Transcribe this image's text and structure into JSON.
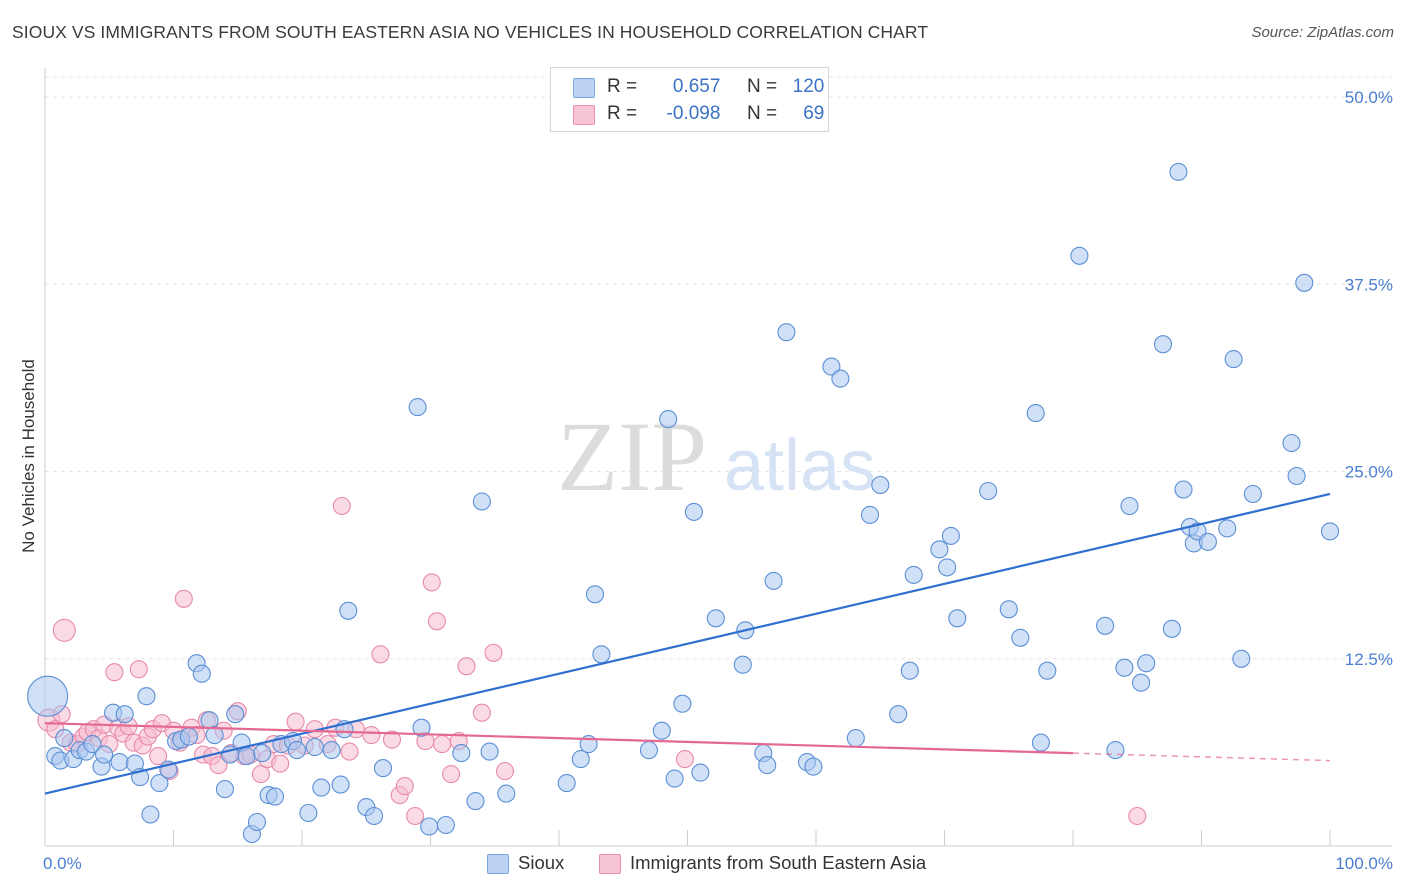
{
  "title": "SIOUX VS IMMIGRANTS FROM SOUTH EASTERN ASIA NO VEHICLES IN HOUSEHOLD CORRELATION CHART",
  "source": "Source: ZipAtlas.com",
  "watermark": {
    "zip": "ZIP",
    "atlas": "atlas"
  },
  "legend": {
    "r_label": "R =",
    "n_label": "N =",
    "rows": [
      {
        "name": "Sioux",
        "r": "0.657",
        "n": "120",
        "color": "#7ba7e6",
        "fill": "#bcd2f3"
      },
      {
        "name": "Immigrants from South Eastern Asia",
        "r": "-0.098",
        "n": "69",
        "color": "#ec8fae",
        "fill": "#f7c6d6"
      }
    ]
  },
  "chart_data": {
    "type": "scatter",
    "title": "SIOUX VS IMMIGRANTS FROM SOUTH EASTERN ASIA NO VEHICLES IN HOUSEHOLD CORRELATION CHART",
    "xlabel": "",
    "ylabel": "No Vehicles in Household",
    "xlim": [
      0,
      100
    ],
    "ylim": [
      0,
      50
    ],
    "x_tick_labels": [
      "0.0%",
      "100.0%"
    ],
    "y_ticks": [
      12.5,
      25.0,
      37.5,
      50.0
    ],
    "y_tick_labels": [
      "12.5%",
      "25.0%",
      "37.5%",
      "50.0%"
    ],
    "grid": true,
    "legend_position": "top-center",
    "series": [
      {
        "name": "Sioux",
        "color": "#5b8fd6",
        "fill": "#aac6ee",
        "trend_color": "#2f6fd0",
        "trend": {
          "x": [
            0,
            100
          ],
          "y": [
            3.5,
            23.5
          ]
        },
        "points": [
          [
            0.2,
            10.0
          ],
          [
            0.8,
            6.0
          ],
          [
            1.2,
            5.7
          ],
          [
            1.5,
            7.2
          ],
          [
            2.2,
            5.8
          ],
          [
            2.7,
            6.4
          ],
          [
            3.2,
            6.3
          ],
          [
            3.7,
            6.8
          ],
          [
            4.4,
            5.3
          ],
          [
            4.6,
            6.1
          ],
          [
            5.3,
            8.9
          ],
          [
            5.8,
            5.6
          ],
          [
            6.2,
            8.8
          ],
          [
            7.0,
            5.5
          ],
          [
            7.4,
            4.6
          ],
          [
            7.9,
            10.0
          ],
          [
            8.2,
            2.1
          ],
          [
            8.9,
            4.2
          ],
          [
            9.6,
            5.1
          ],
          [
            10.2,
            7.0
          ],
          [
            10.6,
            7.1
          ],
          [
            11.2,
            7.3
          ],
          [
            11.8,
            12.2
          ],
          [
            12.2,
            11.5
          ],
          [
            12.8,
            8.4
          ],
          [
            13.2,
            7.4
          ],
          [
            14.0,
            3.8
          ],
          [
            14.4,
            6.1
          ],
          [
            14.8,
            8.8
          ],
          [
            15.3,
            6.9
          ],
          [
            15.7,
            6.0
          ],
          [
            16.1,
            0.8
          ],
          [
            16.5,
            1.6
          ],
          [
            16.9,
            6.2
          ],
          [
            17.4,
            3.4
          ],
          [
            17.9,
            3.3
          ],
          [
            18.4,
            6.8
          ],
          [
            19.3,
            7.0
          ],
          [
            19.6,
            6.4
          ],
          [
            20.5,
            2.2
          ],
          [
            21.0,
            6.6
          ],
          [
            21.5,
            3.9
          ],
          [
            22.3,
            6.4
          ],
          [
            23.0,
            4.1
          ],
          [
            23.3,
            7.8
          ],
          [
            23.6,
            15.7
          ],
          [
            25.0,
            2.6
          ],
          [
            25.6,
            2.0
          ],
          [
            26.3,
            5.2
          ],
          [
            29.0,
            29.3
          ],
          [
            29.3,
            7.9
          ],
          [
            29.9,
            1.3
          ],
          [
            31.2,
            1.4
          ],
          [
            32.4,
            6.2
          ],
          [
            33.5,
            3.0
          ],
          [
            34.0,
            23.0
          ],
          [
            34.6,
            6.3
          ],
          [
            35.9,
            3.5
          ],
          [
            40.6,
            4.2
          ],
          [
            41.7,
            5.8
          ],
          [
            42.3,
            6.8
          ],
          [
            42.8,
            16.8
          ],
          [
            43.3,
            12.8
          ],
          [
            47.0,
            6.4
          ],
          [
            48.0,
            7.7
          ],
          [
            48.5,
            28.5
          ],
          [
            49.0,
            4.5
          ],
          [
            49.6,
            9.5
          ],
          [
            50.5,
            22.3
          ],
          [
            51.0,
            4.9
          ],
          [
            52.2,
            15.2
          ],
          [
            54.3,
            12.1
          ],
          [
            54.5,
            14.4
          ],
          [
            55.9,
            6.2
          ],
          [
            56.2,
            5.4
          ],
          [
            56.7,
            17.7
          ],
          [
            57.7,
            34.3
          ],
          [
            59.3,
            5.6
          ],
          [
            59.8,
            5.3
          ],
          [
            61.2,
            32.0
          ],
          [
            61.9,
            31.2
          ],
          [
            63.1,
            7.2
          ],
          [
            64.2,
            22.1
          ],
          [
            65.0,
            24.1
          ],
          [
            66.4,
            8.8
          ],
          [
            67.3,
            11.7
          ],
          [
            67.6,
            18.1
          ],
          [
            69.6,
            19.8
          ],
          [
            70.2,
            18.6
          ],
          [
            70.5,
            20.7
          ],
          [
            71.0,
            15.2
          ],
          [
            73.4,
            23.7
          ],
          [
            75.0,
            15.8
          ],
          [
            75.9,
            13.9
          ],
          [
            77.1,
            28.9
          ],
          [
            77.5,
            6.9
          ],
          [
            78.0,
            11.7
          ],
          [
            80.5,
            39.4
          ],
          [
            82.5,
            14.7
          ],
          [
            83.3,
            6.4
          ],
          [
            84.0,
            11.9
          ],
          [
            84.4,
            22.7
          ],
          [
            85.3,
            10.9
          ],
          [
            85.7,
            12.2
          ],
          [
            87.0,
            33.5
          ],
          [
            87.7,
            14.5
          ],
          [
            88.2,
            45.0
          ],
          [
            88.6,
            23.8
          ],
          [
            89.1,
            21.3
          ],
          [
            89.4,
            20.2
          ],
          [
            89.7,
            21.0
          ],
          [
            90.5,
            20.3
          ],
          [
            92.0,
            21.2
          ],
          [
            92.5,
            32.5
          ],
          [
            93.1,
            12.5
          ],
          [
            94.0,
            23.5
          ],
          [
            97.0,
            26.9
          ],
          [
            97.4,
            24.7
          ],
          [
            98.0,
            37.6
          ],
          [
            100.0,
            21.0
          ]
        ]
      },
      {
        "name": "Immigrants from South Eastern Asia",
        "color": "#e88aab",
        "fill": "#f5bcd0",
        "trend_color": "#e46892",
        "trend": {
          "x": [
            0,
            80
          ],
          "y": [
            8.2,
            6.2
          ]
        },
        "trend_dashed": {
          "x": [
            80,
            100
          ],
          "y": [
            6.2,
            5.7
          ]
        },
        "points": [
          [
            0.3,
            8.4
          ],
          [
            0.8,
            7.8
          ],
          [
            1.3,
            8.8
          ],
          [
            1.5,
            14.4
          ],
          [
            2.0,
            6.9
          ],
          [
            2.5,
            6.8
          ],
          [
            3.0,
            7.3
          ],
          [
            3.3,
            7.6
          ],
          [
            3.8,
            7.8
          ],
          [
            4.2,
            7.2
          ],
          [
            4.6,
            8.1
          ],
          [
            5.0,
            6.8
          ],
          [
            5.4,
            11.6
          ],
          [
            5.7,
            7.9
          ],
          [
            6.1,
            7.5
          ],
          [
            6.5,
            8.0
          ],
          [
            6.9,
            6.9
          ],
          [
            7.3,
            11.8
          ],
          [
            7.6,
            6.7
          ],
          [
            8.0,
            7.3
          ],
          [
            8.4,
            7.8
          ],
          [
            8.8,
            6.0
          ],
          [
            9.1,
            8.2
          ],
          [
            9.7,
            5.0
          ],
          [
            10.0,
            7.7
          ],
          [
            10.5,
            6.9
          ],
          [
            10.8,
            16.5
          ],
          [
            11.4,
            7.9
          ],
          [
            11.8,
            7.4
          ],
          [
            12.3,
            6.1
          ],
          [
            12.6,
            8.4
          ],
          [
            13.0,
            6.0
          ],
          [
            13.5,
            5.4
          ],
          [
            13.9,
            7.7
          ],
          [
            14.5,
            6.2
          ],
          [
            15.0,
            9.0
          ],
          [
            15.5,
            6.0
          ],
          [
            16.0,
            6.1
          ],
          [
            16.8,
            4.8
          ],
          [
            17.3,
            5.8
          ],
          [
            17.8,
            6.8
          ],
          [
            18.3,
            5.5
          ],
          [
            18.9,
            6.7
          ],
          [
            19.5,
            8.3
          ],
          [
            20.2,
            6.7
          ],
          [
            21.0,
            7.8
          ],
          [
            22.0,
            6.8
          ],
          [
            22.6,
            7.9
          ],
          [
            23.1,
            22.7
          ],
          [
            23.7,
            6.3
          ],
          [
            24.2,
            7.8
          ],
          [
            25.4,
            7.4
          ],
          [
            26.1,
            12.8
          ],
          [
            27.0,
            7.1
          ],
          [
            27.6,
            3.4
          ],
          [
            28.0,
            4.0
          ],
          [
            28.8,
            2.0
          ],
          [
            29.6,
            7.0
          ],
          [
            30.1,
            17.6
          ],
          [
            30.5,
            15.0
          ],
          [
            30.9,
            6.8
          ],
          [
            31.6,
            4.8
          ],
          [
            32.2,
            7.0
          ],
          [
            32.8,
            12.0
          ],
          [
            34.0,
            8.9
          ],
          [
            34.9,
            12.9
          ],
          [
            35.8,
            5.0
          ],
          [
            49.8,
            5.8
          ],
          [
            85.0,
            2.0
          ]
        ]
      }
    ]
  }
}
